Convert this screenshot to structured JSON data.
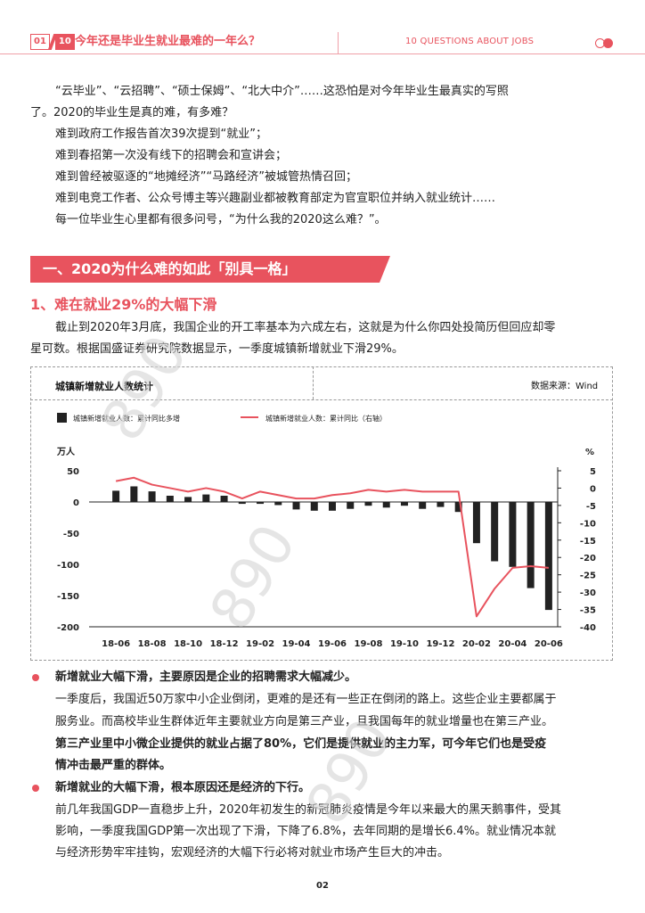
{
  "header": {
    "page_badge_current": "01",
    "page_badge_total": "10",
    "title": "今年还是毕业生就业最难的一年么？",
    "right_text": "10 QUESTIONS ABOUT JOBS"
  },
  "intro": {
    "p1_line1": "“云毕业”、“云招聘”、“硕士保姆”、“北大中介”……这恐怕是对今年毕业生最真实的写照",
    "p1_line2": "了。2020的毕业生是真的难，有多难？",
    "l1": "难到政府工作报告首次39次提到“就业”；",
    "l2": "难到春招第一次没有线下的招聘会和宣讲会；",
    "l3": "难到曾经被驱逐的“地摊经济”“马路经济”被城管热情召回；",
    "l4": "难到电竞工作者、公众号博主等兴趣副业都被教育部定为官宣职位并纳入就业统计……",
    "l5": "每一位毕业生心里都有很多问号，“为什么我的2020这么难？”。"
  },
  "section": {
    "title": "一、2020为什么难的如此「别具一格」",
    "subtitle": "1、难在就业29%的大幅下滑",
    "para_line1": "截止到2020年3月底，我国企业的开工率基本为六成左右，这就是为什么你四处投简历但回应却零",
    "para_line2": "星可数。根据国盛证券研究院数据显示，一季度城镇新增就业下滑29%。"
  },
  "chart_header": {
    "title": "城镇新增就业人数统计",
    "source": "数据来源：Wind"
  },
  "chart_data": {
    "type": "bar+line",
    "categories": [
      "18-06",
      "18-07",
      "18-08",
      "18-09",
      "18-10",
      "18-11",
      "18-12",
      "19-01",
      "19-02",
      "19-03",
      "19-04",
      "19-05",
      "19-06",
      "19-07",
      "19-08",
      "19-09",
      "19-10",
      "19-11",
      "19-12",
      "20-01",
      "20-02",
      "20-03",
      "20-04",
      "20-05",
      "20-06"
    ],
    "tick_labels": [
      "18-06",
      "18-08",
      "18-10",
      "18-12",
      "19-02",
      "19-04",
      "19-06",
      "19-08",
      "19-10",
      "19-12",
      "20-02",
      "20-04",
      "20-06"
    ],
    "series": [
      {
        "name": "城镇新增就业人数：累计同比多增",
        "axis": "left",
        "type": "bar",
        "color": "#222222",
        "values": [
          18,
          25,
          17,
          10,
          8,
          12,
          10,
          -3,
          -3,
          -5,
          -12,
          -14,
          -14,
          -11,
          -6,
          -9,
          -6,
          -11,
          -8,
          -16,
          -66,
          -95,
          -104,
          -138,
          -173
        ]
      },
      {
        "name": "城镇新增就业人数：累计同比（右轴）",
        "axis": "right",
        "type": "line",
        "color": "#e8535e",
        "values": [
          2,
          3,
          1,
          0,
          -1,
          0,
          -1,
          -3,
          -1,
          -2,
          -3,
          -3,
          -2,
          -1.5,
          -0.5,
          -1,
          -0.5,
          -1,
          -1,
          -1,
          -37,
          -29,
          -23,
          -22.5,
          -23
        ]
      }
    ],
    "y_left": {
      "label": "万人",
      "ylim": [
        -200,
        50
      ],
      "ticks": [
        50,
        0,
        -50,
        -100,
        -150,
        -200
      ]
    },
    "y_right": {
      "label": "%",
      "ylim": [
        -40,
        5
      ],
      "ticks": [
        5,
        0,
        -5,
        -10,
        -15,
        -20,
        -25,
        -30,
        -35,
        -40
      ]
    },
    "legend_position": "top-left"
  },
  "bullets": [
    {
      "heading": "新增就业大幅下滑，主要原因是企业的招聘需求大幅减少。",
      "line1": "一季度后，我国近50万家中小企业倒闭，更难的是还有一些正在倒闭的路上。这些企业主要都属于",
      "line2": "服务业。而高校毕业生群体近年主要就业方向是第三产业，且我国每年的就业增量也在第三产业。",
      "bold_line1": "第三产业里中小微企业提供的就业占据了80%，它们是提供就业的主力军，可今年它们也是受疫",
      "bold_line2": "情冲击最严重的群体。"
    },
    {
      "heading": "新增就业的大幅下滑，根本原因还是经济的下行。",
      "line1": "前几年我国GDP一直稳步上升，2020年初发生的新冠肺炎疫情是今年以来最大的黑天鹅事件，受其",
      "line2": "影响，一季度我国GDP第一次出现了下滑，下降了6.8%，去年同期的是增长6.4%。就业情况本就",
      "line3": "与经济形势牢牢挂钩，宏观经济的大幅下行必将对就业市场产生巨大的冲击。"
    }
  ],
  "watermarks": [
    "890",
    "890",
    "890"
  ],
  "page_number": "02"
}
